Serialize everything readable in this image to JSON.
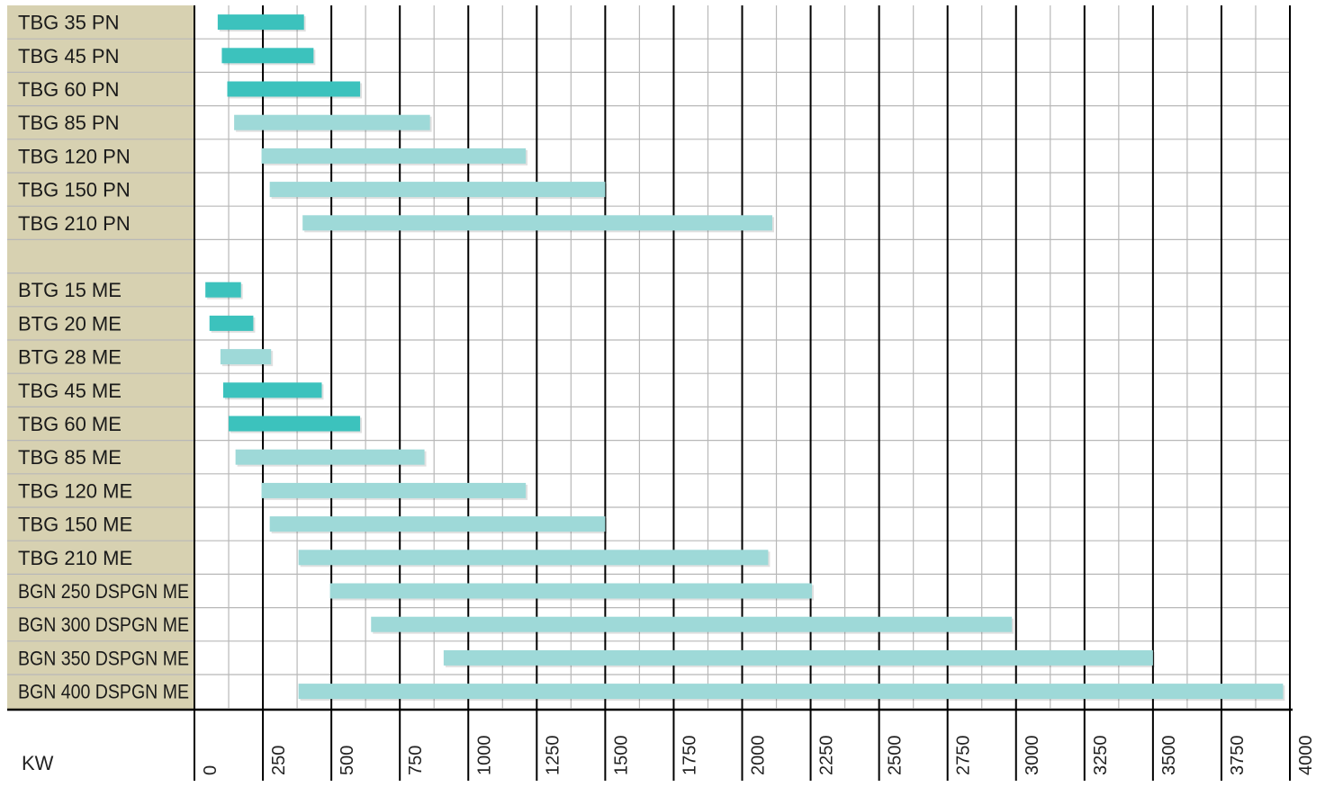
{
  "chart_data": {
    "type": "bar",
    "orientation": "horizontal",
    "subtype": "range",
    "xlabel": "KW",
    "xlim": [
      0,
      4000
    ],
    "x_ticks": [
      0,
      250,
      500,
      750,
      1000,
      1250,
      1500,
      1750,
      2000,
      2250,
      2500,
      2750,
      3000,
      3250,
      3500,
      3750,
      4000
    ],
    "tick_labels": [
      "0",
      "250",
      "500",
      "750",
      "1000",
      "1250",
      "1500",
      "1750",
      "2000",
      "2250",
      "2500",
      "2750",
      "3000",
      "3250",
      "3500",
      "3750",
      "4000"
    ],
    "grid": true,
    "colors": {
      "dark": "#3cc2bd",
      "light": "#9ed9d8",
      "label_bg": "#d7d1b1",
      "grid_major": "#000000",
      "grid_minor": "#b8b8b8"
    },
    "rows": [
      {
        "label": "TBG 35 PN",
        "start": 85,
        "end": 400,
        "shade": "dark"
      },
      {
        "label": "TBG 45 PN",
        "start": 100,
        "end": 435,
        "shade": "dark"
      },
      {
        "label": "TBG 60 PN",
        "start": 120,
        "end": 605,
        "shade": "dark"
      },
      {
        "label": "TBG 85 PN",
        "start": 145,
        "end": 860,
        "shade": "light"
      },
      {
        "label": "TBG 120 PN",
        "start": 245,
        "end": 1210,
        "shade": "light"
      },
      {
        "label": "TBG 150 PN",
        "start": 275,
        "end": 1500,
        "shade": "light"
      },
      {
        "label": "TBG 210 PN",
        "start": 395,
        "end": 2110,
        "shade": "light"
      },
      {
        "label": "",
        "start": null,
        "end": null,
        "shade": "light"
      },
      {
        "label": "BTG 15 ME",
        "start": 40,
        "end": 170,
        "shade": "dark"
      },
      {
        "label": "BTG 20 ME",
        "start": 55,
        "end": 215,
        "shade": "dark"
      },
      {
        "label": "BTG 28 ME",
        "start": 95,
        "end": 280,
        "shade": "light"
      },
      {
        "label": "TBG 45 ME",
        "start": 105,
        "end": 465,
        "shade": "dark"
      },
      {
        "label": "TBG 60 ME",
        "start": 125,
        "end": 605,
        "shade": "dark"
      },
      {
        "label": "TBG 85 ME",
        "start": 150,
        "end": 840,
        "shade": "light"
      },
      {
        "label": "TBG 120 ME",
        "start": 245,
        "end": 1210,
        "shade": "light"
      },
      {
        "label": "TBG 150 ME",
        "start": 275,
        "end": 1500,
        "shade": "light"
      },
      {
        "label": "TBG 210 ME",
        "start": 380,
        "end": 2095,
        "shade": "light"
      },
      {
        "label": "BGN 250 DSPGN ME",
        "start": 495,
        "end": 2255,
        "shade": "light"
      },
      {
        "label": "BGN 300 DSPGN ME",
        "start": 645,
        "end": 2985,
        "shade": "light"
      },
      {
        "label": "BGN 350 DSPGN ME",
        "start": 910,
        "end": 3500,
        "shade": "light"
      },
      {
        "label": "BGN 400 DSPGN ME",
        "start": 380,
        "end": 3975,
        "shade": "light"
      }
    ]
  }
}
